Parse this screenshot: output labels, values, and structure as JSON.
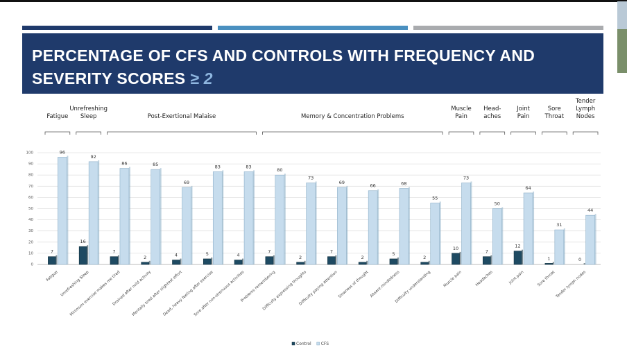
{
  "chart_data": {
    "type": "bar",
    "title": "PERCENTAGE OF CFS AND CONTROLS WITH FREQUENCY AND SEVERITY SCORES",
    "title_highlight": "≥ 2",
    "groups": [
      "Fatigue",
      "Unrefreshing Sleep",
      "Post-Exertional Malaise",
      "Memory & Concentration Problems",
      "Muscle Pain",
      "Head-aches",
      "Joint Pain",
      "Sore Throat",
      "Tender Lymph Nodes"
    ],
    "categories": [
      "Fatigue",
      "Unrefreshing Sleep",
      "Minimum exercise makes me tired",
      "Drained after mild activity",
      "Mentally tired after slightest effort",
      "Dead, heavy feeling after exercise",
      "Sore after non-strenuous activities",
      "Problems remembering",
      "Difficulty expressing thoughts",
      "Difficulty paying attention",
      "Slowness of thought",
      "Absent-mindedness",
      "Difficulty understanding",
      "Muscle pain",
      "Headaches",
      "Joint pain",
      "Sore throat",
      "Tender lymph nodes"
    ],
    "series": [
      {
        "name": "Control",
        "color": "#1e4a62",
        "values": [
          7,
          16,
          7,
          2,
          4,
          5,
          4,
          7,
          2,
          7,
          2,
          5,
          2,
          10,
          7,
          12,
          1,
          0
        ]
      },
      {
        "name": "CFS",
        "color": "#c6dced",
        "values": [
          96,
          92,
          86,
          85,
          69,
          83,
          83,
          80,
          73,
          69,
          66,
          68,
          55,
          73,
          50,
          64,
          31,
          44
        ]
      }
    ],
    "ylim": [
      0,
      100
    ],
    "yticks": [
      0,
      10,
      20,
      30,
      40,
      50,
      60,
      70,
      80,
      90,
      100
    ],
    "grid": true
  }
}
